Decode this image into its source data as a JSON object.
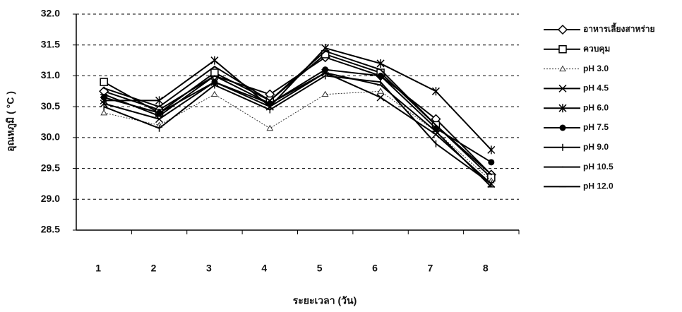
{
  "chart_data": {
    "type": "line",
    "x_label": "ระยะเวลา (วัน)",
    "y_label": "อุณหภูมิ ( °C )",
    "categories": [
      "1",
      "2",
      "3",
      "4",
      "5",
      "6",
      "7",
      "8"
    ],
    "ylim": [
      28.5,
      32
    ],
    "yticks": [
      {
        "value": 28.5,
        "label": "28.5"
      },
      {
        "value": 29,
        "label": "29.0"
      },
      29.5,
      {
        "value": 30,
        "label": "30.0"
      },
      30.5,
      {
        "value": 31,
        "label": "31.0"
      },
      31.5,
      {
        "value": 32,
        "label": "32.0"
      }
    ],
    "grid": true,
    "legend": "right",
    "series": [
      {
        "name": "อาหารเลี้ยงสาหร่าย",
        "color": "#000000",
        "marker": "diamond",
        "values": [
          30.75,
          30.45,
          31.0,
          30.7,
          31.3,
          31.0,
          30.3,
          29.4
        ]
      },
      {
        "name": "ควบคุม",
        "color": "#000000",
        "marker": "square",
        "values": [
          30.9,
          30.4,
          31.05,
          30.6,
          31.35,
          31.05,
          30.2,
          29.35
        ]
      },
      {
        "name": "pH 3.0",
        "color": "#333333",
        "marker": "triangle",
        "style": "dotted",
        "values": [
          30.4,
          30.2,
          30.7,
          30.15,
          30.7,
          30.75,
          30.1,
          29.3
        ]
      },
      {
        "name": "pH 4.5",
        "color": "#000000",
        "marker": "x",
        "values": [
          30.55,
          30.3,
          30.9,
          30.5,
          31.05,
          30.65,
          30.05,
          29.25
        ]
      },
      {
        "name": "pH 6.0",
        "color": "#000000",
        "marker": "star",
        "values": [
          30.6,
          30.6,
          31.25,
          30.5,
          31.45,
          31.2,
          30.75,
          29.8
        ]
      },
      {
        "name": "pH 7.5",
        "color": "#000000",
        "marker": "circle",
        "values": [
          30.65,
          30.4,
          30.9,
          30.55,
          31.1,
          31.0,
          30.15,
          29.6
        ]
      },
      {
        "name": "pH 9.0",
        "color": "#000000",
        "marker": "plus",
        "values": [
          30.5,
          30.15,
          30.85,
          30.45,
          31.0,
          30.9,
          29.9,
          29.25
        ]
      },
      {
        "name": "pH 10.5",
        "color": "#000000",
        "marker": "none",
        "values": [
          30.8,
          30.5,
          31.15,
          30.6,
          31.4,
          31.1,
          30.2,
          29.4
        ]
      },
      {
        "name": "pH 12.0",
        "color": "#000000",
        "marker": "dash",
        "values": [
          30.7,
          30.35,
          31.0,
          30.55,
          31.05,
          30.85,
          30.1,
          29.2
        ]
      }
    ]
  }
}
